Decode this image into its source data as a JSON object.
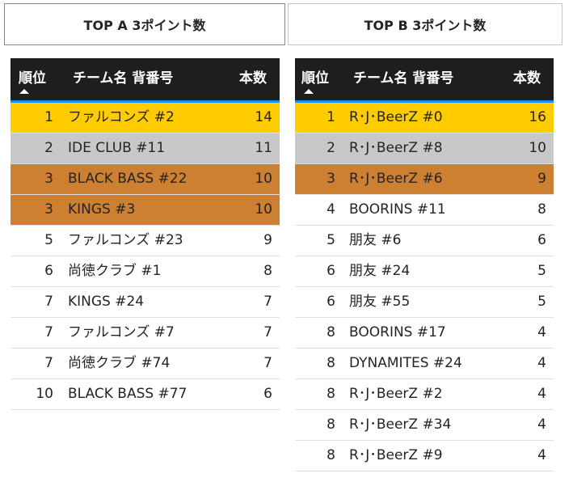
{
  "colors": {
    "header_bg": "#1f1e1d",
    "header_rule": "#118dff",
    "gold": "#ffcc00",
    "silver": "#c8c8c8",
    "bronze": "#cd7f32",
    "row_border": "#e1dfdd"
  },
  "tables": [
    {
      "title": "TOP A 3ポイント数",
      "headers": {
        "rank": "順位",
        "name": "チーム名 背番号",
        "count": "本数"
      },
      "sort_icon": "sort-ascending-icon",
      "rows": [
        {
          "rank": "1",
          "name": "ファルコンズ #2",
          "count": "14",
          "highlight": "gold"
        },
        {
          "rank": "2",
          "name": "IDE CLUB #11",
          "count": "11",
          "highlight": "silver"
        },
        {
          "rank": "3",
          "name": "BLACK BASS #22",
          "count": "10",
          "highlight": "bronze"
        },
        {
          "rank": "3",
          "name": "KINGS #3",
          "count": "10",
          "highlight": "bronze"
        },
        {
          "rank": "5",
          "name": "ファルコンズ #23",
          "count": "9",
          "highlight": ""
        },
        {
          "rank": "6",
          "name": "尚徳クラブ #1",
          "count": "8",
          "highlight": ""
        },
        {
          "rank": "7",
          "name": "KINGS #24",
          "count": "7",
          "highlight": ""
        },
        {
          "rank": "7",
          "name": "ファルコンズ #7",
          "count": "7",
          "highlight": ""
        },
        {
          "rank": "7",
          "name": "尚徳クラブ #74",
          "count": "7",
          "highlight": ""
        },
        {
          "rank": "10",
          "name": "BLACK BASS #77",
          "count": "6",
          "highlight": ""
        }
      ]
    },
    {
      "title": "TOP B 3ポイント数",
      "headers": {
        "rank": "順位",
        "name": "チーム名 背番号",
        "count": "本数"
      },
      "sort_icon": "sort-ascending-icon",
      "rows": [
        {
          "rank": "1",
          "name": "R･J･BeerZ #0",
          "count": "16",
          "highlight": "gold"
        },
        {
          "rank": "2",
          "name": "R･J･BeerZ #8",
          "count": "10",
          "highlight": "silver"
        },
        {
          "rank": "3",
          "name": "R･J･BeerZ #6",
          "count": "9",
          "highlight": "bronze"
        },
        {
          "rank": "4",
          "name": "BOORINS #11",
          "count": "8",
          "highlight": ""
        },
        {
          "rank": "5",
          "name": "朋友 #6",
          "count": "6",
          "highlight": ""
        },
        {
          "rank": "6",
          "name": "朋友 #24",
          "count": "5",
          "highlight": ""
        },
        {
          "rank": "6",
          "name": "朋友 #55",
          "count": "5",
          "highlight": ""
        },
        {
          "rank": "8",
          "name": "BOORINS #17",
          "count": "4",
          "highlight": ""
        },
        {
          "rank": "8",
          "name": "DYNAMITES #24",
          "count": "4",
          "highlight": ""
        },
        {
          "rank": "8",
          "name": "R･J･BeerZ #2",
          "count": "4",
          "highlight": ""
        },
        {
          "rank": "8",
          "name": "R･J･BeerZ #34",
          "count": "4",
          "highlight": ""
        },
        {
          "rank": "8",
          "name": "R･J･BeerZ #9",
          "count": "4",
          "highlight": ""
        }
      ]
    }
  ]
}
